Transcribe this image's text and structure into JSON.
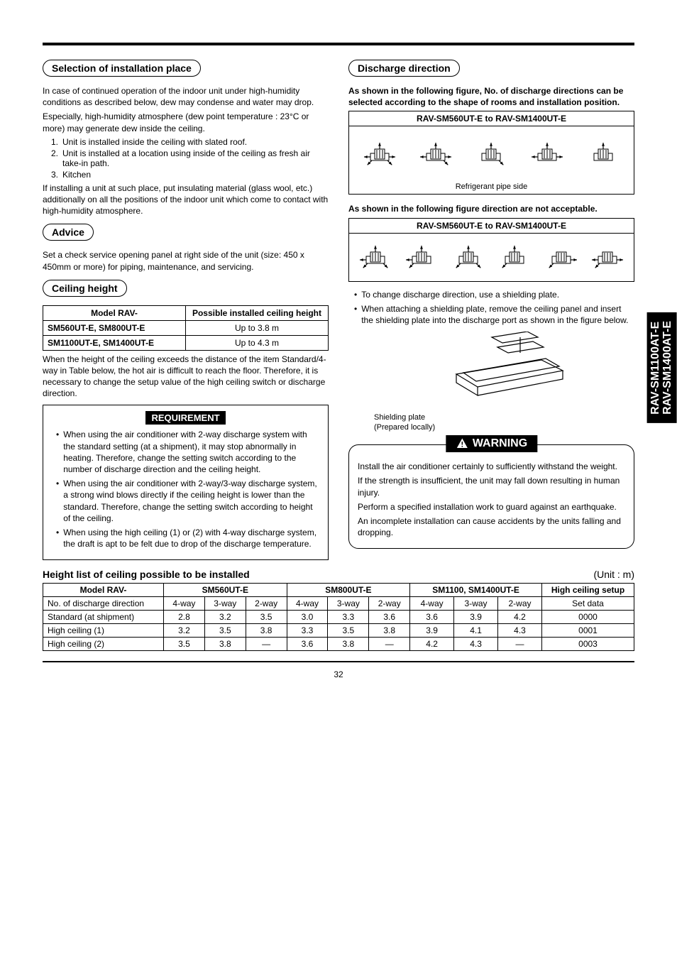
{
  "page_number": "32",
  "side_tab": {
    "line1": "RAV-SM1100AT-E",
    "line2": "RAV-SM1400AT-E"
  },
  "left": {
    "sec1_title": "Selection of installation place",
    "p1": "In case of continued operation of the indoor unit under high-humidity conditions as described below, dew may condense and water may drop.",
    "p2": "Especially, high-humidity atmosphere (dew point temperature : 23°C or more) may generate dew inside the ceiling.",
    "list": [
      {
        "n": "1.",
        "t": "Unit is installed inside the ceiling with slated roof."
      },
      {
        "n": "2.",
        "t": "Unit is installed at a location using inside of the ceiling as fresh air take-in path."
      },
      {
        "n": "3.",
        "t": "Kitchen"
      }
    ],
    "p3": "If installing a unit at such place, put insulating material (glass wool, etc.) additionally on all the positions of the indoor unit which come to contact with high-humidity atmosphere.",
    "advice_title": "Advice",
    "advice_text": "Set a check service opening panel at right side of the unit (size: 450 x 450mm or more) for piping, maintenance, and servicing.",
    "ceiling_title": "Ceiling height",
    "ceiling_table": {
      "h1": "Model   RAV-",
      "h2": "Possible installed ceiling height",
      "rows": [
        [
          "SM560UT-E, SM800UT-E",
          "Up to 3.8 m"
        ],
        [
          "SM1100UT-E, SM1400UT-E",
          "Up to 4.3 m"
        ]
      ]
    },
    "ceiling_after": "When the height of the ceiling exceeds the distance of the item Standard/4-way in Table below, the hot air is difficult to reach the floor. Therefore, it is necessary to change the setup value of the high ceiling switch or discharge direction.",
    "req_label": "REQUIREMENT",
    "req_bullets": [
      "When using the air conditioner with 2-way discharge system with the standard setting (at a shipment), it may stop abnormally in heating. Therefore, change the setting switch according to the number of discharge direction and the ceiling height.",
      "When using the air conditioner with 2-way/3-way discharge system, a strong wind blows directly if the ceiling height is lower than the standard. Therefore, change the setting switch according to height of the ceiling.",
      "When using the high ceiling (1) or (2) with 4-way discharge system, the draft is apt to be felt due to drop of the discharge temperature."
    ]
  },
  "right": {
    "sec_title": "Discharge direction",
    "intro": "As shown in the following figure, No. of discharge directions can be selected according to the shape of rooms and installation position.",
    "fig_ok_head": "RAV-SM560UT-E to RAV-SM1400UT-E",
    "fig_ok_caption": "Refrigerant pipe side",
    "intro_bad": "As shown in the following figure direction are not acceptable.",
    "fig_bad_head": "RAV-SM560UT-E to RAV-SM1400UT-E",
    "notes": [
      "To change discharge direction, use a shielding plate.",
      "When attaching a shielding plate, remove the ceiling panel and insert the shielding plate into the discharge port as shown in the figure below."
    ],
    "shield_label1": "Shielding plate",
    "shield_label2": "(Prepared locally)",
    "warn_label": "WARNING",
    "warn_p1": "Install the air conditioner certainly to sufficiently withstand the weight.",
    "warn_p2": "If the strength is insufficient, the unit may fall down resulting in human injury.",
    "warn_p3": "Perform a specified installation work to guard against an earthquake.",
    "warn_p4": "An incomplete installation can cause accidents by the units falling and dropping."
  },
  "bottom": {
    "title": "Height list of ceiling possible to be installed",
    "unit_label": "(Unit : m)",
    "headers": {
      "model": "Model     RAV-",
      "g1": "SM560UT-E",
      "g2": "SM800UT-E",
      "g3": "SM1100, SM1400UT-E",
      "g4": "High ceiling setup",
      "row2_label": "No. of discharge direction",
      "c": [
        "4-way",
        "3-way",
        "2-way",
        "4-way",
        "3-way",
        "2-way",
        "4-way",
        "3-way",
        "2-way"
      ],
      "setdata": "Set data"
    },
    "rows": [
      {
        "label": "Standard (at shipment)",
        "v": [
          "2.8",
          "3.2",
          "3.5",
          "3.0",
          "3.3",
          "3.6",
          "3.6",
          "3.9",
          "4.2"
        ],
        "s": "0000"
      },
      {
        "label": "High ceiling (1)",
        "v": [
          "3.2",
          "3.5",
          "3.8",
          "3.3",
          "3.5",
          "3.8",
          "3.9",
          "4.1",
          "4.3"
        ],
        "s": "0001"
      },
      {
        "label": "High ceiling (2)",
        "v": [
          "3.5",
          "3.8",
          "—",
          "3.6",
          "3.8",
          "—",
          "4.2",
          "4.3",
          "—"
        ],
        "s": "0003"
      }
    ]
  },
  "discharge_units": {
    "ok": [
      {
        "arrows": [
          "up",
          "left",
          "right",
          "down-left",
          "down-right"
        ]
      },
      {
        "arrows": [
          "up",
          "left",
          "right",
          "down-right"
        ]
      },
      {
        "arrows": [
          "up",
          "down-right"
        ]
      },
      {
        "arrows": [
          "up",
          "left",
          "right"
        ]
      },
      {
        "arrows": [
          "up"
        ]
      }
    ],
    "bad": [
      {
        "arrows": [
          "up",
          "left",
          "down-left",
          "down-right"
        ]
      },
      {
        "arrows": [
          "up",
          "left",
          "down-left"
        ]
      },
      {
        "arrows": [
          "up",
          "down-left",
          "down-right"
        ]
      },
      {
        "arrows": [
          "up",
          "down-left"
        ]
      },
      {
        "arrows": [
          "right",
          "down-left"
        ]
      },
      {
        "arrows": [
          "left",
          "right",
          "down-left"
        ]
      }
    ]
  }
}
